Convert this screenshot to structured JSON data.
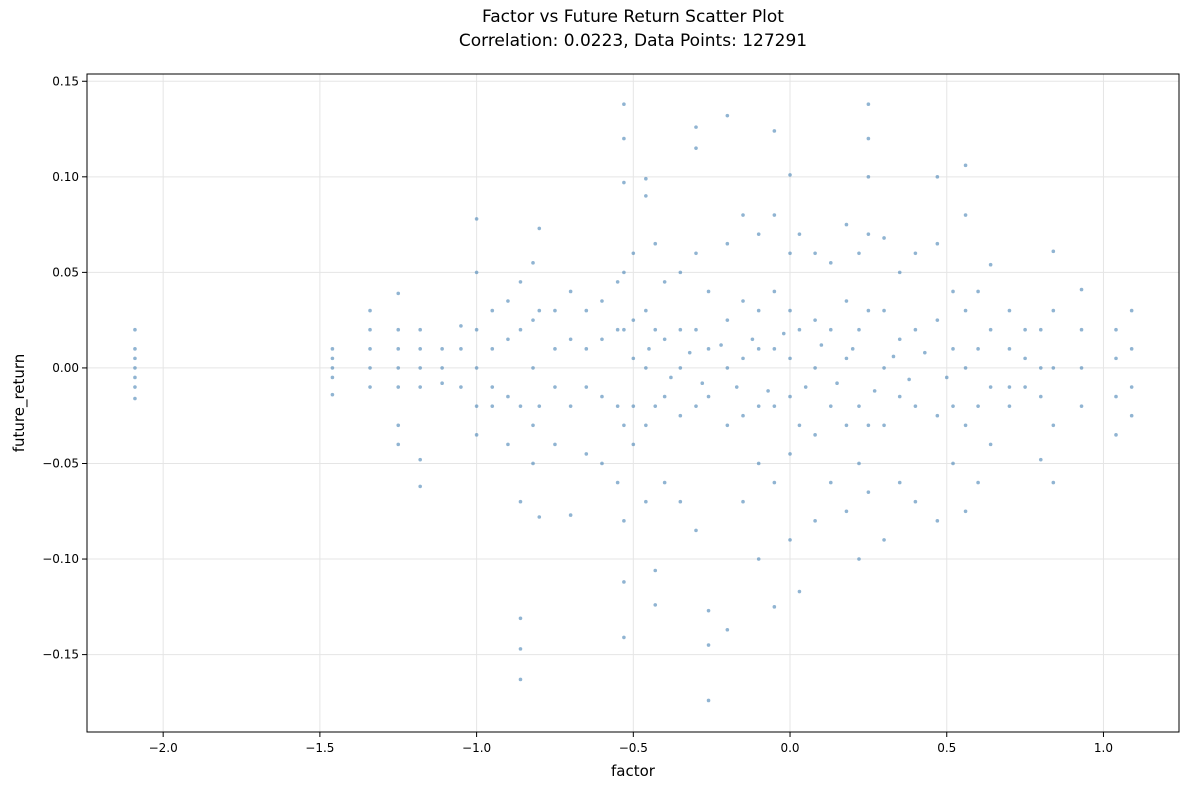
{
  "chart_data": {
    "type": "scatter",
    "title": "Factor vs Future Return Scatter Plot",
    "subtitle": "Correlation: 0.0223, Data Points: 127291",
    "x_label": "factor",
    "y_label": "future_return",
    "color": "#4682b4",
    "grid": true,
    "xlim": [
      -2.243,
      1.241
    ],
    "ylim": [
      -0.1905,
      0.1538
    ],
    "xticks": [
      {
        "value": -2.0,
        "label": "−2.0"
      },
      {
        "value": -1.5,
        "label": "−1.5"
      },
      {
        "value": -1.0,
        "label": "−1.0"
      },
      {
        "value": -0.5,
        "label": "−0.5"
      },
      {
        "value": 0.0,
        "label": "0.0"
      },
      0.5,
      {
        "value": 1.0,
        "label": "1.0"
      }
    ],
    "yticks": [
      {
        "value": -0.15,
        "label": "−0.15"
      },
      {
        "value": -0.1,
        "label": "−0.10"
      },
      {
        "value": -0.05,
        "label": "−0.05"
      },
      {
        "value": 0.0,
        "label": "0.00"
      },
      0.05,
      {
        "value": 0.1,
        "label": "0.10"
      },
      {
        "value": 0.15,
        "label": "0.15"
      }
    ],
    "x": [
      -2.09,
      -2.09,
      -2.09,
      -2.09,
      -2.09,
      -2.09,
      -2.09,
      -1.46,
      -1.46,
      -1.46,
      -1.46,
      -1.46,
      -1.34,
      -1.34,
      -1.34,
      -1.34,
      -1.34,
      -1.25,
      -1.25,
      -1.25,
      -1.25,
      -1.25,
      -1.25,
      -1.25,
      -1.18,
      -1.18,
      -1.18,
      -1.18,
      -1.18,
      -1.18,
      -1.11,
      -1.11,
      -1.11,
      -1.05,
      -1.05,
      -1.05,
      -1.0,
      -1.0,
      -1.0,
      -1.0,
      -1.0,
      -1.0,
      -0.95,
      -0.95,
      -0.95,
      -0.95,
      -0.9,
      -0.9,
      -0.9,
      -0.9,
      -0.86,
      -0.86,
      -0.86,
      -0.86,
      -0.86,
      -0.86,
      -0.86,
      -0.82,
      -0.82,
      -0.82,
      -0.82,
      -0.82,
      -0.8,
      -0.8,
      -0.8,
      -0.8,
      -0.75,
      -0.75,
      -0.75,
      -0.75,
      -0.7,
      -0.7,
      -0.7,
      -0.7,
      -0.65,
      -0.65,
      -0.65,
      -0.65,
      -0.6,
      -0.6,
      -0.6,
      -0.6,
      -0.55,
      -0.55,
      -0.55,
      -0.55,
      -0.53,
      -0.53,
      -0.53,
      -0.53,
      -0.53,
      -0.53,
      -0.53,
      -0.53,
      -0.53,
      -0.5,
      -0.5,
      -0.5,
      -0.5,
      -0.5,
      -0.46,
      -0.46,
      -0.46,
      -0.46,
      -0.46,
      -0.46,
      -0.43,
      -0.43,
      -0.43,
      -0.43,
      -0.43,
      -0.4,
      -0.4,
      -0.4,
      -0.4,
      -0.35,
      -0.35,
      -0.35,
      -0.35,
      -0.35,
      -0.3,
      -0.3,
      -0.3,
      -0.3,
      -0.3,
      -0.3,
      -0.26,
      -0.26,
      -0.26,
      -0.26,
      -0.26,
      -0.26,
      -0.2,
      -0.2,
      -0.2,
      -0.2,
      -0.2,
      -0.2,
      -0.15,
      -0.15,
      -0.15,
      -0.15,
      -0.15,
      -0.1,
      -0.1,
      -0.1,
      -0.1,
      -0.1,
      -0.1,
      -0.05,
      -0.05,
      -0.05,
      -0.05,
      -0.05,
      -0.05,
      -0.05,
      0.0,
      0.0,
      0.0,
      0.0,
      0.0,
      0.0,
      0.0,
      0.03,
      0.03,
      0.03,
      0.03,
      0.08,
      0.08,
      0.08,
      0.08,
      0.08,
      0.13,
      0.13,
      0.13,
      0.13,
      0.18,
      0.18,
      0.18,
      0.18,
      0.18,
      0.22,
      0.22,
      0.22,
      0.22,
      0.22,
      0.25,
      0.25,
      0.25,
      0.25,
      0.25,
      0.25,
      0.25,
      0.3,
      0.3,
      0.3,
      0.3,
      0.3,
      0.35,
      0.35,
      0.35,
      0.35,
      0.4,
      0.4,
      0.4,
      0.4,
      0.47,
      0.47,
      0.47,
      0.47,
      0.47,
      0.52,
      0.52,
      0.52,
      0.52,
      0.56,
      0.56,
      0.56,
      0.56,
      0.56,
      0.56,
      0.6,
      0.6,
      0.6,
      0.6,
      0.64,
      0.64,
      0.64,
      0.64,
      0.7,
      0.7,
      0.7,
      0.7,
      0.75,
      0.75,
      0.75,
      0.8,
      0.8,
      0.8,
      0.8,
      0.84,
      0.84,
      0.84,
      0.84,
      0.84,
      0.93,
      0.93,
      0.93,
      0.93,
      1.04,
      1.04,
      1.04,
      1.04,
      1.09,
      1.09,
      1.09,
      1.09,
      -0.45,
      -0.38,
      -0.32,
      -0.28,
      -0.22,
      -0.17,
      -0.12,
      -0.07,
      -0.02,
      0.05,
      0.1,
      0.15,
      0.2,
      0.27,
      0.33,
      0.38,
      0.43,
      0.5
    ],
    "values": [
      0.02,
      0.01,
      0.005,
      0,
      -0.005,
      -0.01,
      -0.016,
      0.01,
      0.005,
      0,
      -0.005,
      -0.014,
      0.03,
      0.02,
      0.01,
      0,
      -0.01,
      0.039,
      0.02,
      0.01,
      0,
      -0.01,
      -0.03,
      -0.04,
      0.02,
      0.01,
      0,
      -0.01,
      -0.048,
      -0.062,
      0.01,
      0,
      -0.008,
      0.022,
      0.01,
      -0.01,
      0.078,
      0.05,
      0.02,
      0,
      -0.02,
      -0.035,
      0.03,
      0.01,
      -0.01,
      -0.02,
      0.035,
      0.015,
      -0.015,
      -0.04,
      0.045,
      0.02,
      -0.02,
      -0.07,
      -0.131,
      -0.147,
      -0.163,
      0.055,
      0.025,
      0,
      -0.03,
      -0.05,
      0.073,
      0.03,
      -0.02,
      -0.078,
      0.03,
      0.01,
      -0.01,
      -0.04,
      0.04,
      0.015,
      -0.02,
      -0.077,
      0.03,
      0.01,
      -0.01,
      -0.045,
      0.035,
      0.015,
      -0.015,
      -0.05,
      0.045,
      0.02,
      -0.02,
      -0.06,
      0.138,
      0.12,
      0.097,
      0.05,
      0.02,
      -0.03,
      -0.08,
      -0.112,
      -0.141,
      0.06,
      0.025,
      0.005,
      -0.02,
      -0.04,
      0.099,
      0.09,
      0.03,
      0,
      -0.03,
      -0.07,
      0.065,
      0.02,
      -0.02,
      -0.124,
      -0.106,
      0.045,
      0.015,
      -0.015,
      -0.06,
      0.05,
      0.02,
      0,
      -0.025,
      -0.07,
      0.126,
      0.115,
      0.06,
      0.02,
      -0.02,
      -0.085,
      0.04,
      0.01,
      -0.015,
      -0.127,
      -0.174,
      -0.145,
      0.132,
      0.065,
      0.025,
      0,
      -0.03,
      -0.137,
      0.08,
      0.035,
      0.005,
      -0.025,
      -0.07,
      0.07,
      0.03,
      0.01,
      -0.02,
      -0.05,
      -0.1,
      0.124,
      0.08,
      0.04,
      0.01,
      -0.02,
      -0.06,
      -0.125,
      0.101,
      0.06,
      0.03,
      0.005,
      -0.015,
      -0.045,
      -0.09,
      0.07,
      0.02,
      -0.03,
      -0.117,
      0.06,
      0.025,
      0,
      -0.035,
      -0.08,
      0.055,
      0.02,
      -0.02,
      -0.06,
      0.075,
      0.035,
      0.005,
      -0.03,
      -0.075,
      0.06,
      0.02,
      -0.02,
      -0.05,
      -0.1,
      0.138,
      0.12,
      0.1,
      0.07,
      0.03,
      -0.03,
      -0.065,
      0.068,
      0.03,
      0,
      -0.03,
      -0.09,
      0.05,
      0.015,
      -0.015,
      -0.06,
      0.06,
      0.02,
      -0.02,
      -0.07,
      0.1,
      0.065,
      0.025,
      -0.025,
      -0.08,
      0.04,
      0.01,
      -0.02,
      -0.05,
      0.106,
      0.08,
      0.03,
      0,
      -0.03,
      -0.075,
      0.04,
      0.01,
      -0.02,
      -0.06,
      0.054,
      0.02,
      -0.01,
      -0.04,
      0.03,
      0.01,
      -0.01,
      -0.02,
      0.02,
      0.005,
      -0.01,
      0.02,
      0,
      -0.015,
      -0.048,
      0.061,
      0.03,
      0,
      -0.03,
      -0.06,
      0.041,
      0.02,
      0,
      -0.02,
      0.02,
      0.005,
      -0.015,
      -0.035,
      0.03,
      0.01,
      -0.01,
      -0.025,
      0.01,
      -0.005,
      0.008,
      -0.008,
      0.012,
      -0.01,
      0.015,
      -0.012,
      0.018,
      -0.01,
      0.012,
      -0.008,
      0.01,
      -0.012,
      0.006,
      -0.006,
      0.008,
      -0.005
    ]
  }
}
